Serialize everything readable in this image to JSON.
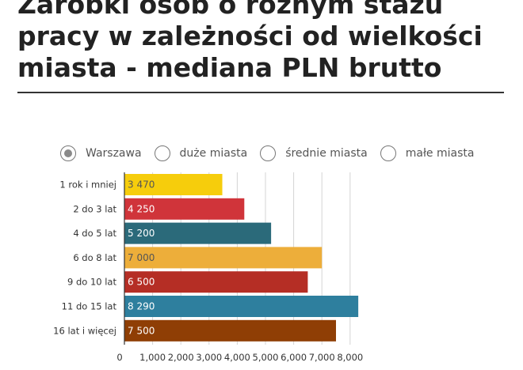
{
  "title_lines": [
    "Zarobki osób o różnym stażu",
    "pracy w zależności od wielkości",
    "miasta - mediana PLN brutto"
  ],
  "radio_options": [
    {
      "label": "Warszawa",
      "selected": true
    },
    {
      "label": "duże miasta",
      "selected": false
    },
    {
      "label": "średnie miasta",
      "selected": false
    },
    {
      "label": "małe miasta",
      "selected": false
    }
  ],
  "chart_data": {
    "type": "bar",
    "orientation": "horizontal",
    "categories": [
      "1 rok i mniej",
      "2 do 3 lat",
      "4 do 5 lat",
      "6 do 8 lat",
      "9 do 10 lat",
      "11 do 15 lat",
      "16 lat i więcej"
    ],
    "values": [
      3470,
      4250,
      5200,
      7000,
      6500,
      8290,
      7500
    ],
    "value_labels": [
      "3 470",
      "4 250",
      "5 200",
      "7 000",
      "6 500",
      "8 290",
      "7 500"
    ],
    "colors": [
      "#F6CD0C",
      "#D0343A",
      "#2B6A7A",
      "#EDAE3A",
      "#B52E25",
      "#2E7F9E",
      "#8F3E05"
    ],
    "label_colors": [
      "#555555",
      "#ffffff",
      "#ffffff",
      "#555555",
      "#ffffff",
      "#ffffff",
      "#ffffff"
    ],
    "x_ticks": [
      0,
      1000,
      2000,
      3000,
      4000,
      5000,
      6000,
      7000,
      8000
    ],
    "x_tick_labels": [
      "0",
      "1,000",
      "2,000",
      "3,000",
      "4,000",
      "5,000",
      "6,000",
      "7,000",
      "8,000"
    ],
    "xlim": [
      0,
      9000
    ],
    "grid": true
  }
}
